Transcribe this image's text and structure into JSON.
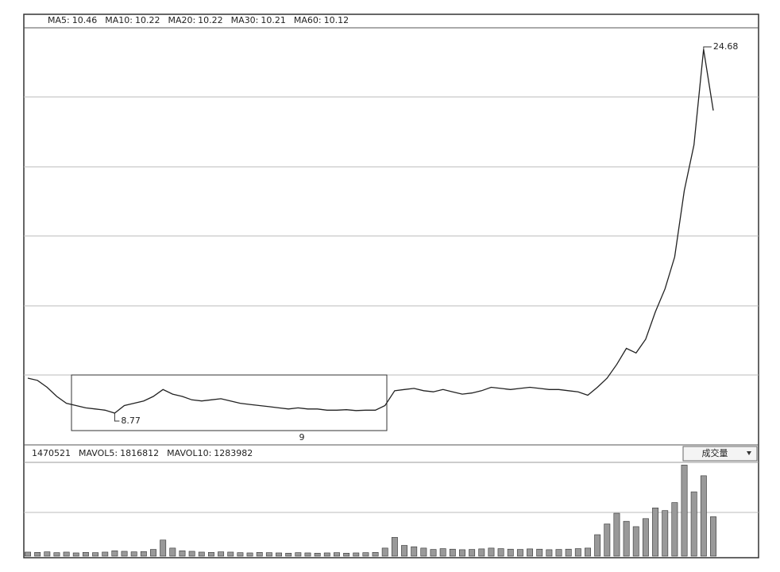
{
  "chart_data": [
    {
      "type": "line",
      "indicators": [
        {
          "name": "MA5:",
          "value": 10.46
        },
        {
          "name": "MA10:",
          "value": 10.22
        },
        {
          "name": "MA20:",
          "value": 10.22
        },
        {
          "name": "MA30:",
          "value": 10.21
        },
        {
          "name": "MA60:",
          "value": 10.12
        }
      ],
      "values": [
        10.3,
        10.2,
        9.9,
        9.5,
        9.2,
        9.1,
        9.0,
        8.95,
        8.9,
        8.77,
        9.1,
        9.2,
        9.3,
        9.5,
        9.8,
        9.6,
        9.5,
        9.35,
        9.3,
        9.35,
        9.4,
        9.3,
        9.2,
        9.15,
        9.1,
        9.05,
        9.0,
        8.95,
        9.0,
        8.95,
        8.95,
        8.9,
        8.9,
        8.92,
        8.88,
        8.9,
        8.9,
        9.1,
        9.75,
        9.8,
        9.85,
        9.75,
        9.7,
        9.8,
        9.7,
        9.6,
        9.65,
        9.75,
        9.9,
        9.85,
        9.8,
        9.85,
        9.9,
        9.85,
        9.8,
        9.8,
        9.75,
        9.7,
        9.55,
        9.9,
        10.3,
        10.9,
        11.6,
        11.4,
        12.0,
        13.2,
        14.2,
        15.6,
        18.5,
        20.5,
        24.68,
        22.0
      ],
      "color": "#222222",
      "ylim": [
        7.38,
        25.62
      ],
      "box_label": "9"
    },
    {
      "type": "bar",
      "indicators": [
        {
          "name": "MAVOL5:",
          "value": 1816812
        },
        {
          "name": "MAVOL10:",
          "value": 1283982
        }
      ],
      "selector": "成交量",
      "values": [
        150000,
        140000,
        160000,
        130000,
        150000,
        120000,
        140000,
        130000,
        150000,
        200000,
        180000,
        160000,
        170000,
        250000,
        600000,
        300000,
        200000,
        180000,
        150000,
        140000,
        160000,
        150000,
        130000,
        120000,
        140000,
        130000,
        120000,
        110000,
        130000,
        120000,
        110000,
        120000,
        130000,
        110000,
        120000,
        130000,
        140000,
        300000,
        700000,
        400000,
        350000,
        300000,
        250000,
        280000,
        260000,
        240000,
        250000,
        270000,
        300000,
        280000,
        260000,
        250000,
        270000,
        260000,
        240000,
        250000,
        260000,
        280000,
        300000,
        800000,
        1200000,
        1600000,
        1300000,
        1100000,
        1400000,
        1800000,
        1700000,
        2000000,
        3400000,
        2400000,
        3000000,
        1470521
      ],
      "color": "#999999",
      "ylim": [
        0,
        3500000
      ]
    }
  ]
}
